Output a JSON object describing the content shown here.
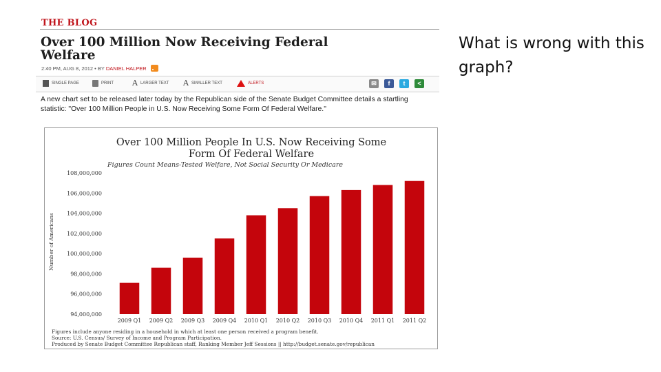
{
  "slide": {
    "question": "What is wrong with this graph?"
  },
  "blog": {
    "section": "THE BLOG",
    "headline": "Over 100 Million Now Receiving Federal Welfare",
    "byline_prefix": "2:40 PM, AUG 8, 2012 • BY",
    "author": "DANIEL HALPER",
    "toolbar": {
      "single_page": "SINGLE PAGE",
      "print": "PRINT",
      "larger_text": "LARGER TEXT",
      "smaller_text": "SMALLER TEXT",
      "alerts": "ALERTS"
    },
    "share_colors": {
      "email": "#8a8a8a",
      "facebook": "#3b5998",
      "twitter": "#2aa9e0",
      "share": "#2e8b3a"
    },
    "intro": "A new chart set to be released later today by the Republican side of the Senate Budget Committee details a startling statistic: \"Over 100 Million People in U.S. Now Receiving Some Form Of Federal Welfare.\""
  },
  "chart_data": {
    "type": "bar",
    "title": "Over 100 Million People In U.S. Now Receiving Some Form Of Federal Welfare",
    "title_line1": "Over 100 Million People In U.S. Now Receiving Some",
    "title_line2": "Form Of Federal Welfare",
    "subtitle": "Figures Count Means-Tested Welfare, Not Social Security Or Medicare",
    "ylabel": "Number of Americans",
    "xlabel": "",
    "categories": [
      "2009 Q1",
      "2009 Q2",
      "2009 Q3",
      "2009 Q4",
      "2010 Q1",
      "2010 Q2",
      "2010 Q3",
      "2010 Q4",
      "2011 Q1",
      "2011 Q2"
    ],
    "values": [
      97100000,
      98600000,
      99600000,
      101500000,
      103800000,
      104500000,
      105700000,
      106300000,
      106800000,
      107200000
    ],
    "ylim": [
      94000000,
      108000000
    ],
    "yticks": [
      94000000,
      96000000,
      98000000,
      100000000,
      102000000,
      104000000,
      106000000,
      108000000
    ],
    "ytick_labels": [
      "94,000,000",
      "96,000,000",
      "98,000,000",
      "100,000,000",
      "102,000,000",
      "104,000,000",
      "106,000,000",
      "108,000,000"
    ],
    "grid": false,
    "bar_color": "#c4050c",
    "notes": [
      "Figures include anyone residing in a household in which at least one person received a program benefit.",
      "Source: U.S. Census/ Survey of Income and Program Participation.",
      "Produced by Senate Budget Committee Republican staff, Ranking Member Jeff Sessions || http://budget.senate.gov/republican"
    ]
  }
}
